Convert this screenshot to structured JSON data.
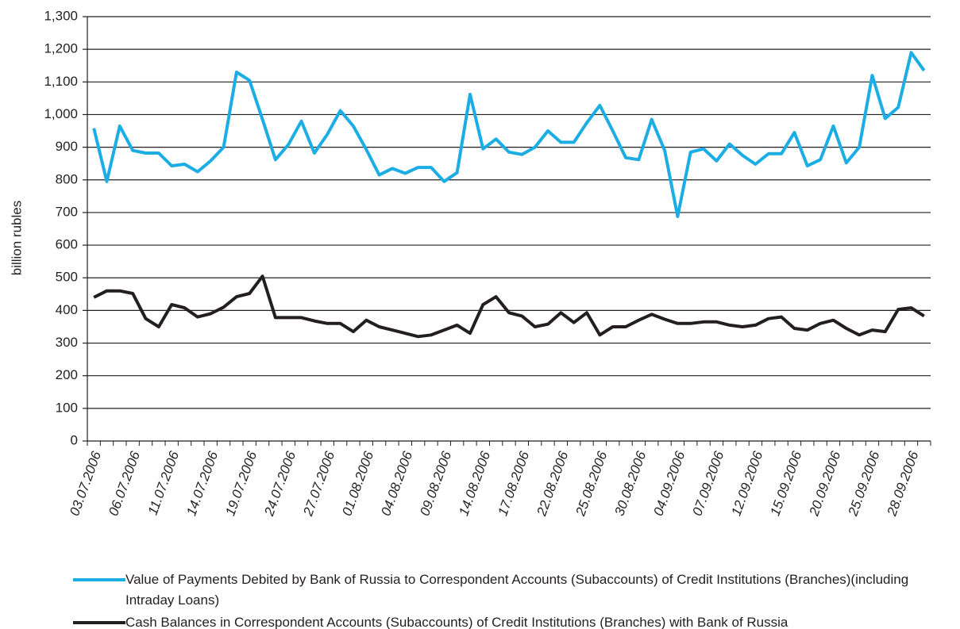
{
  "chart_data": {
    "type": "line",
    "y_label": "billion rubles",
    "categories": [
      "03.07.2006",
      null,
      null,
      "06.07.2006",
      null,
      null,
      "11.07.2006",
      null,
      null,
      "14.07.2006",
      null,
      null,
      "19.07.2006",
      null,
      null,
      "24.07.2006",
      null,
      null,
      "27.07.2006",
      null,
      null,
      "01.08.2006",
      null,
      null,
      "04.08.2006",
      null,
      null,
      "09.08.2006",
      null,
      null,
      "14.08.2006",
      null,
      null,
      "17.08.2006",
      null,
      null,
      "22.08.2006",
      null,
      null,
      "25.08.2006",
      null,
      null,
      "30.08.2006",
      null,
      null,
      "04.09.2006",
      null,
      null,
      "07.09.2006",
      null,
      null,
      "12.09.2006",
      null,
      null,
      "15.09.2006",
      null,
      null,
      "20.09.2006",
      null,
      null,
      "25.09.2006",
      null,
      null,
      "28.09.2006",
      null
    ],
    "series": [
      {
        "name": "Value of Payments Debited  by Bank of Russia to Correspondent Accounts (Subaccounts) of Credit Institutions (Branches)(including Intraday Loans)",
        "color": "#1cade4",
        "values": [
          958,
          795,
          965,
          890,
          882,
          882,
          843,
          848,
          825,
          858,
          900,
          1130,
          1105,
          985,
          862,
          908,
          980,
          882,
          940,
          1012,
          965,
          893,
          815,
          835,
          820,
          838,
          838,
          795,
          822,
          1062,
          895,
          925,
          885,
          878,
          900,
          950,
          915,
          915,
          975,
          1028,
          950,
          868,
          862,
          985,
          890,
          688,
          885,
          895,
          858,
          910,
          875,
          848,
          880,
          880,
          945,
          843,
          862,
          965,
          852,
          900,
          1120,
          988,
          1022,
          1190,
          1135
        ]
      },
      {
        "name": "Cash Balances in Correspondent Accounts (Subaccounts) of Credit Institutions (Branches) with Bank of Russia",
        "color": "#231f20",
        "values": [
          440,
          460,
          460,
          452,
          375,
          350,
          418,
          408,
          380,
          390,
          410,
          442,
          452,
          505,
          378,
          378,
          378,
          368,
          360,
          360,
          335,
          370,
          350,
          340,
          330,
          320,
          325,
          340,
          355,
          330,
          418,
          442,
          393,
          383,
          350,
          358,
          393,
          363,
          393,
          325,
          350,
          350,
          370,
          388,
          373,
          360,
          360,
          365,
          365,
          355,
          350,
          355,
          375,
          380,
          345,
          340,
          360,
          370,
          345,
          325,
          340,
          335,
          403,
          408,
          383
        ]
      }
    ],
    "ylim": [
      0,
      1300
    ],
    "yticks": [
      0,
      100,
      200,
      300,
      400,
      500,
      600,
      700,
      800,
      900,
      {
        "value": 1000,
        "label": "1,000"
      },
      {
        "value": 1100,
        "label": "1,100"
      },
      {
        "value": 1200,
        "label": "1,200"
      },
      {
        "value": 1300,
        "label": "1,300"
      }
    ],
    "grid": true,
    "legend": "bottom"
  }
}
